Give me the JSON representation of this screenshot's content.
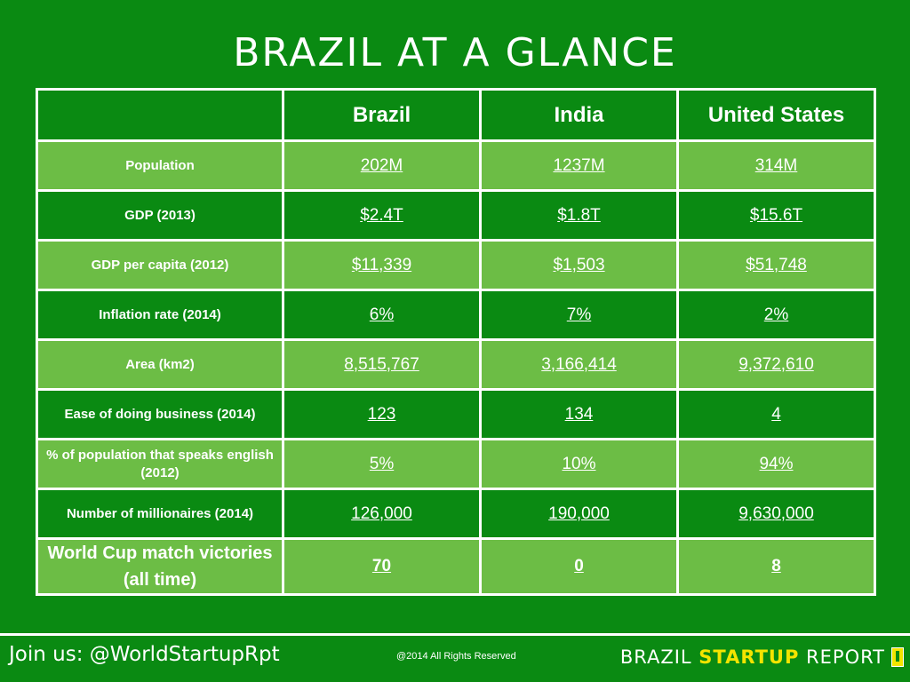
{
  "title": "BRAZIL AT A GLANCE",
  "columns": [
    "",
    "Brazil",
    "India",
    "United States"
  ],
  "rows": [
    {
      "label": "Population",
      "values": [
        "202M",
        "1237M",
        "314M"
      ]
    },
    {
      "label": "GDP (2013)",
      "values": [
        "$2.4T",
        "$1.8T",
        "$15.6T"
      ]
    },
    {
      "label": "GDP per capita (2012)",
      "values": [
        "$11,339",
        "$1,503",
        "$51,748"
      ]
    },
    {
      "label": "Inflation rate (2014)",
      "values": [
        "6%",
        "7%",
        "2%"
      ]
    },
    {
      "label": "Area (km2)",
      "values": [
        "8,515,767",
        "3,166,414",
        "9,372,610"
      ]
    },
    {
      "label": "Ease of doing business (2014)",
      "values": [
        "123",
        "134",
        "4"
      ]
    },
    {
      "label": "% of population that speaks english (2012)",
      "values": [
        "5%",
        "10%",
        "94%"
      ]
    },
    {
      "label": "Number of millionaires (2014)",
      "values": [
        "126,000",
        "190,000",
        "9,630,000"
      ]
    },
    {
      "label": "World Cup match victories (all time)",
      "values": [
        "70",
        "0",
        "8"
      ]
    }
  ],
  "footer": {
    "join": "Join us: @WorldStartupRpt",
    "rights": "@2014 All Rights Reserved",
    "brand_part1": "BRAZIL ",
    "brand_part2": "STARTUP",
    "brand_part3": " REPORT"
  },
  "colors": {
    "background": "#0a8a12",
    "row_light": "#6cbd45",
    "accent_yellow": "#f3e400"
  },
  "icons": {
    "brand_logo": "brand-logo-icon"
  }
}
